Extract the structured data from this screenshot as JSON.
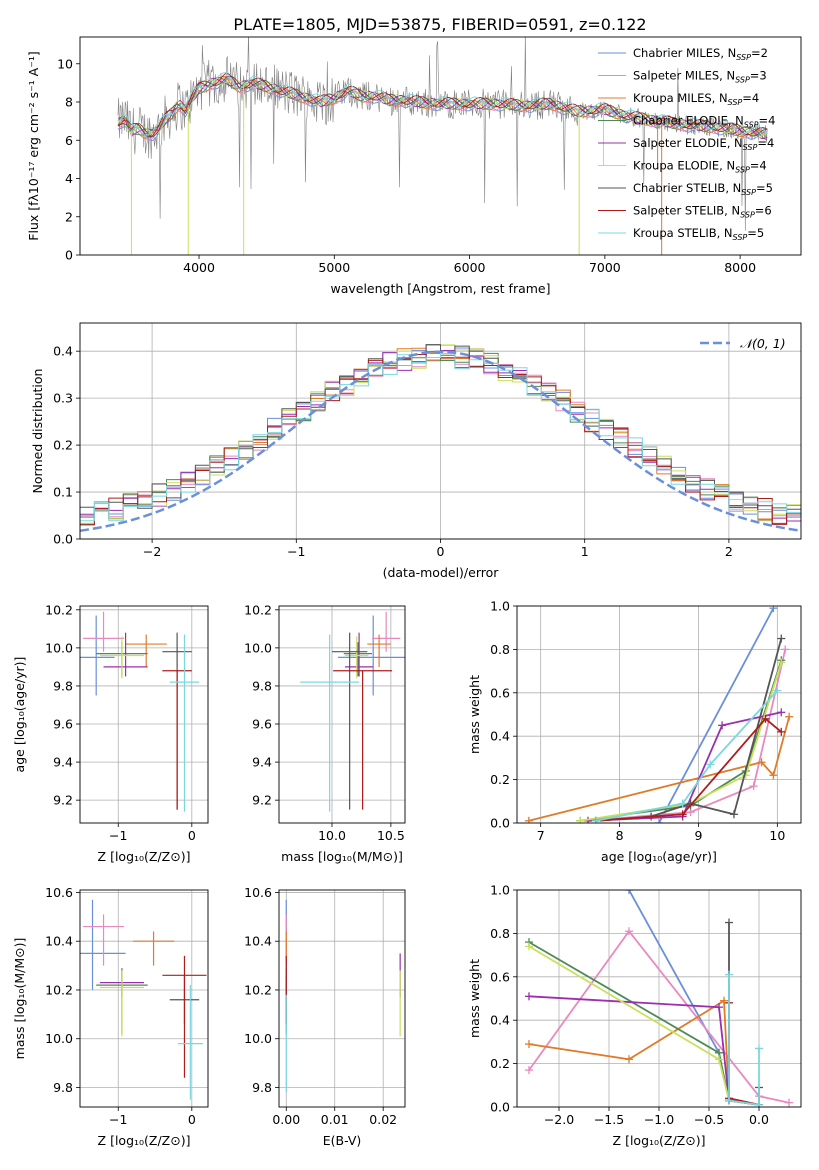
{
  "figure_title": "PLATE=1805, MJD=53875, FIBERID=0591, z=0.122",
  "colors": {
    "Chabrier MILES": "#6a8fdc",
    "Salpeter MILES": "#e889c0",
    "Kroupa MILES": "#e07b28",
    "Chabrier ELODIE": "#4e8a56",
    "Salpeter ELODIE": "#9b2fae",
    "Kroupa ELODIE": "#c8e05c",
    "Chabrier STELIB": "#555555",
    "Salpeter STELIB": "#b01c1c",
    "Kroupa STELIB": "#7ad7e0",
    "data": "#808080",
    "normal": "#6a8fdc"
  },
  "chart_data": [
    {
      "id": "spectrum",
      "type": "line",
      "xlabel": "wavelength [Angstrom, rest frame]",
      "ylabel": "Flux [fλ10⁻¹⁷ erg cm⁻² s⁻¹ A⁻¹]",
      "xlim": [
        3120,
        8450
      ],
      "ylim": [
        0,
        11.4
      ],
      "xticks": [
        4000,
        5000,
        6000,
        7000,
        8000
      ],
      "yticks": [
        0,
        2,
        4,
        6,
        8,
        10
      ],
      "legend_position": "top-right",
      "legend": [
        {
          "model": "Chabrier MILES",
          "label": "Chabrier MILES, N",
          "sub": "SSP",
          "tail": "=2"
        },
        {
          "model": "Salpeter MILES",
          "label": "Salpeter MILES, N",
          "sub": "SSP",
          "tail": "=3"
        },
        {
          "model": "Kroupa MILES",
          "label": "Kroupa MILES, N",
          "sub": "SSP",
          "tail": "=4"
        },
        {
          "model": "Chabrier ELODIE",
          "label": "Chabrier ELODIE, N",
          "sub": "SSP",
          "tail": "=4"
        },
        {
          "model": "Salpeter ELODIE",
          "label": "Salpeter ELODIE, N",
          "sub": "SSP",
          "tail": "=4"
        },
        {
          "model": "Kroupa ELODIE",
          "label": "Kroupa ELODIE, N",
          "sub": "SSP",
          "tail": "=4"
        },
        {
          "model": "Chabrier STELIB",
          "label": "Chabrier STELIB, N",
          "sub": "SSP",
          "tail": "=5"
        },
        {
          "model": "Salpeter STELIB",
          "label": "Salpeter STELIB, N",
          "sub": "SSP",
          "tail": "=6"
        },
        {
          "model": "Kroupa STELIB",
          "label": "Kroupa STELIB, N",
          "sub": "SSP",
          "tail": "=5"
        }
      ],
      "continuum": [
        [
          3400,
          6.9
        ],
        [
          3450,
          7.1
        ],
        [
          3500,
          6.5
        ],
        [
          3550,
          6.6
        ],
        [
          3600,
          6.4
        ],
        [
          3650,
          6.3
        ],
        [
          3700,
          6.6
        ],
        [
          3750,
          7.1
        ],
        [
          3800,
          7.4
        ],
        [
          3850,
          7.9
        ],
        [
          3900,
          7.6
        ],
        [
          3950,
          8.2
        ],
        [
          4000,
          8.7
        ],
        [
          4100,
          9.0
        ],
        [
          4200,
          9.2
        ],
        [
          4300,
          8.8
        ],
        [
          4400,
          9.0
        ],
        [
          4500,
          8.8
        ],
        [
          4600,
          8.6
        ],
        [
          4700,
          8.4
        ],
        [
          4800,
          8.2
        ],
        [
          4900,
          8.0
        ],
        [
          5000,
          8.2
        ],
        [
          5100,
          8.6
        ],
        [
          5200,
          8.3
        ],
        [
          5300,
          8.3
        ],
        [
          5400,
          8.1
        ],
        [
          5500,
          8.1
        ],
        [
          5600,
          8.0
        ],
        [
          5800,
          7.9
        ],
        [
          6000,
          7.9
        ],
        [
          6200,
          7.9
        ],
        [
          6400,
          7.8
        ],
        [
          6600,
          7.9
        ],
        [
          6800,
          7.5
        ],
        [
          7000,
          7.6
        ],
        [
          7200,
          7.2
        ],
        [
          7400,
          7.0
        ],
        [
          7600,
          6.8
        ],
        [
          7800,
          6.7
        ],
        [
          8000,
          6.5
        ],
        [
          8200,
          6.3
        ]
      ],
      "dropouts": [
        [
          3500,
          0
        ],
        [
          3920,
          0
        ],
        [
          4330,
          0
        ],
        [
          7420,
          0
        ],
        [
          6810,
          0
        ],
        [
          6990,
          4.7
        ],
        [
          7390,
          4.7
        ]
      ]
    },
    {
      "id": "residuals",
      "type": "histogram",
      "xlabel": "(data-model)/error",
      "ylabel": "Normed distribution",
      "xlim": [
        -2.5,
        2.5
      ],
      "ylim": [
        0,
        0.46
      ],
      "xticks": [
        -2,
        -1,
        0,
        1,
        2
      ],
      "yticks": [
        0.0,
        0.1,
        0.2,
        0.3,
        0.4
      ],
      "bin_width": 0.1,
      "legend_label": "𝒩(0, 1)",
      "legend_position": "top-right"
    },
    {
      "id": "age-vs-Z",
      "type": "scatter",
      "xlabel": "Z [log₁₀(Z/Z⊙)]",
      "ylabel": "age  [log₁₀(age/yr)]",
      "xlim": [
        -1.52,
        0.22
      ],
      "ylim": [
        9.08,
        10.22
      ],
      "xticks": [
        -1,
        0
      ],
      "yticks": [
        9.2,
        9.4,
        9.6,
        9.8,
        10.0,
        10.2
      ],
      "points": [
        {
          "model": "Chabrier MILES",
          "x": -1.3,
          "xerr": 0.25,
          "y": 9.95,
          "yerr": [
            0.2,
            0.22
          ]
        },
        {
          "model": "Salpeter MILES",
          "x": -1.2,
          "xerr": 0.28,
          "y": 10.05,
          "yerr": [
            0.07,
            0.14
          ]
        },
        {
          "model": "Kroupa MILES",
          "x": -0.62,
          "xerr": 0.28,
          "y": 10.02,
          "yerr": [
            0.12,
            0.05
          ]
        },
        {
          "model": "Chabrier ELODIE",
          "x": -0.95,
          "xerr": 0.35,
          "y": 9.97,
          "yerr": [
            0.12,
            0.06
          ]
        },
        {
          "model": "Salpeter ELODIE",
          "x": -0.9,
          "xerr": 0.3,
          "y": 9.9,
          "yerr": [
            0.05,
            0.18
          ]
        },
        {
          "model": "Kroupa ELODIE",
          "x": -0.95,
          "xerr": 0.3,
          "y": 9.96,
          "yerr": [
            0.12,
            0.1
          ]
        },
        {
          "model": "Chabrier STELIB",
          "x": -0.2,
          "xerr": 0.2,
          "y": 9.98,
          "yerr": [
            0.83,
            0.1
          ]
        },
        {
          "model": "Salpeter STELIB",
          "x": -0.2,
          "xerr": 0.2,
          "y": 9.88,
          "yerr": [
            0.73,
            0.0
          ]
        },
        {
          "model": "Kroupa STELIB",
          "x": -0.1,
          "xerr": 0.2,
          "y": 9.82,
          "yerr": [
            0.68,
            0.25
          ]
        }
      ]
    },
    {
      "id": "age-vs-mass",
      "type": "scatter",
      "xlabel": "mass [log₁₀(M/M⊙)]",
      "ylabel": "",
      "xlim": [
        9.55,
        10.62
      ],
      "ylim": [
        9.08,
        10.22
      ],
      "xticks": [
        10.0,
        10.5
      ],
      "yticks": [
        9.2,
        9.4,
        9.6,
        9.8,
        10.0,
        10.2
      ],
      "points": [
        {
          "model": "Chabrier MILES",
          "x": 10.35,
          "xerr": 0.3,
          "y": 9.95,
          "yerr": [
            0.2,
            0.22
          ]
        },
        {
          "model": "Salpeter MILES",
          "x": 10.46,
          "xerr": 0.12,
          "y": 10.05,
          "yerr": [
            0.07,
            0.14
          ]
        },
        {
          "model": "Kroupa MILES",
          "x": 10.4,
          "xerr": 0.1,
          "y": 10.02,
          "yerr": [
            0.12,
            0.05
          ]
        },
        {
          "model": "Chabrier ELODIE",
          "x": 10.22,
          "xerr": 0.12,
          "y": 9.97,
          "yerr": [
            0.12,
            0.06
          ]
        },
        {
          "model": "Salpeter ELODIE",
          "x": 10.23,
          "xerr": 0.12,
          "y": 9.9,
          "yerr": [
            0.05,
            0.18
          ]
        },
        {
          "model": "Kroupa ELODIE",
          "x": 10.21,
          "xerr": 0.1,
          "y": 9.96,
          "yerr": [
            0.12,
            0.1
          ]
        },
        {
          "model": "Chabrier STELIB",
          "x": 10.15,
          "xerr": 0.15,
          "y": 9.98,
          "yerr": [
            0.83,
            0.1
          ]
        },
        {
          "model": "Salpeter STELIB",
          "x": 10.26,
          "xerr": 0.25,
          "y": 9.88,
          "yerr": [
            0.73,
            0.0
          ]
        },
        {
          "model": "Kroupa STELIB",
          "x": 9.98,
          "xerr": 0.25,
          "y": 9.82,
          "yerr": [
            0.68,
            0.25
          ]
        }
      ]
    },
    {
      "id": "weight-vs-age",
      "type": "line",
      "xlabel": "age  [log₁₀(age/yr)]",
      "ylabel": "mass weight",
      "xlim": [
        6.7,
        10.3
      ],
      "ylim": [
        0,
        1.0
      ],
      "xticks": [
        7,
        8,
        9,
        10
      ],
      "yticks": [
        0.0,
        0.2,
        0.4,
        0.6,
        0.8,
        1.0
      ],
      "series": [
        {
          "model": "Chabrier MILES",
          "x": [
            8.5,
            9.95
          ],
          "y": [
            0.0,
            0.99
          ]
        },
        {
          "model": "Salpeter MILES",
          "x": [
            7.6,
            8.9,
            9.7,
            10.1
          ],
          "y": [
            0.01,
            0.05,
            0.17,
            0.8
          ]
        },
        {
          "model": "Kroupa MILES",
          "x": [
            6.85,
            9.8,
            9.95,
            10.15
          ],
          "y": [
            0.01,
            0.28,
            0.22,
            0.49
          ]
        },
        {
          "model": "Chabrier ELODIE",
          "x": [
            7.5,
            8.9,
            9.6,
            10.05
          ],
          "y": [
            0.01,
            0.08,
            0.24,
            0.75
          ]
        },
        {
          "model": "Salpeter ELODIE",
          "x": [
            7.6,
            8.8,
            9.3,
            10.05
          ],
          "y": [
            0.01,
            0.03,
            0.45,
            0.51
          ]
        },
        {
          "model": "Kroupa ELODIE",
          "x": [
            7.5,
            8.9,
            9.6,
            10.05
          ],
          "y": [
            0.01,
            0.09,
            0.22,
            0.74
          ]
        },
        {
          "model": "Chabrier STELIB",
          "x": [
            7.7,
            8.4,
            8.9,
            9.45,
            10.05
          ],
          "y": [
            0.01,
            0.03,
            0.09,
            0.04,
            0.85
          ]
        },
        {
          "model": "Salpeter STELIB",
          "x": [
            7.7,
            8.8,
            9.85,
            10.05
          ],
          "y": [
            0.01,
            0.04,
            0.48,
            0.42
          ]
        },
        {
          "model": "Kroupa STELIB",
          "x": [
            7.7,
            8.8,
            9.15,
            10.0
          ],
          "y": [
            0.01,
            0.09,
            0.27,
            0.61
          ]
        }
      ]
    },
    {
      "id": "mass-vs-Z",
      "type": "scatter",
      "xlabel": "Z [log₁₀(Z/Z⊙)]",
      "ylabel": "mass [log₁₀(M/M⊙)]",
      "xlim": [
        -1.52,
        0.22
      ],
      "ylim": [
        9.72,
        10.61
      ],
      "xticks": [
        -1,
        0
      ],
      "yticks": [
        9.8,
        10.0,
        10.2,
        10.4,
        10.6
      ],
      "points": [
        {
          "model": "Chabrier MILES",
          "x": -1.35,
          "xerr": 0.45,
          "y": 10.35,
          "yerr": [
            0.15,
            0.22
          ]
        },
        {
          "model": "Salpeter MILES",
          "x": -1.2,
          "xerr": 0.28,
          "y": 10.46,
          "yerr": [
            0.16,
            0.05
          ]
        },
        {
          "model": "Kroupa MILES",
          "x": -0.52,
          "xerr": 0.28,
          "y": 10.4,
          "yerr": [
            0.1,
            0.04
          ]
        },
        {
          "model": "Chabrier ELODIE",
          "x": -0.95,
          "xerr": 0.35,
          "y": 10.22,
          "yerr": [
            0.2,
            0.07
          ]
        },
        {
          "model": "Salpeter ELODIE",
          "x": -0.95,
          "xerr": 0.3,
          "y": 10.23,
          "yerr": [
            0.06,
            0.05
          ]
        },
        {
          "model": "Kroupa ELODIE",
          "x": -0.95,
          "xerr": 0.3,
          "y": 10.21,
          "yerr": [
            0.2,
            0.07
          ]
        },
        {
          "model": "Chabrier STELIB",
          "x": -0.1,
          "xerr": 0.2,
          "y": 10.16,
          "yerr": [
            0.1,
            0.1
          ]
        },
        {
          "model": "Salpeter STELIB",
          "x": -0.1,
          "xerr": 0.3,
          "y": 10.26,
          "yerr": [
            0.42,
            0.08
          ]
        },
        {
          "model": "Kroupa STELIB",
          "x": -0.02,
          "xerr": 0.17,
          "y": 9.98,
          "yerr": [
            0.23,
            0.24
          ]
        }
      ]
    },
    {
      "id": "mass-vs-EBV",
      "type": "scatter",
      "xlabel": "E(B-V)",
      "ylabel": "",
      "xlim": [
        -0.0015,
        0.0245
      ],
      "ylim": [
        9.72,
        10.61
      ],
      "xticks": [
        0.0,
        0.01,
        0.02
      ],
      "xtick_labels": [
        "0.00",
        "0.01",
        "0.02"
      ],
      "yticks": [
        9.8,
        10.0,
        10.2,
        10.4,
        10.6
      ],
      "points": [
        {
          "model": "Chabrier MILES",
          "x": 0.0,
          "y": 10.35,
          "yerr": [
            0.15,
            0.22
          ]
        },
        {
          "model": "Salpeter MILES",
          "x": 0.0,
          "y": 10.46,
          "yerr": [
            0.16,
            0.05
          ]
        },
        {
          "model": "Kroupa MILES",
          "x": 0.0,
          "y": 10.4,
          "yerr": [
            0.1,
            0.04
          ]
        },
        {
          "model": "Chabrier ELODIE",
          "x": 0.0,
          "y": 10.22,
          "yerr": [
            0.2,
            0.07
          ]
        },
        {
          "model": "Salpeter ELODIE",
          "x": 0.0235,
          "y": 10.23,
          "yerr": [
            0.06,
            0.12
          ]
        },
        {
          "model": "Kroupa ELODIE",
          "x": 0.0235,
          "y": 10.21,
          "yerr": [
            0.2,
            0.07
          ]
        },
        {
          "model": "Chabrier STELIB",
          "x": 0.0,
          "y": 10.16,
          "yerr": [
            0.1,
            0.1
          ]
        },
        {
          "model": "Salpeter STELIB",
          "x": 0.0,
          "y": 10.26,
          "yerr": [
            0.2,
            0.08
          ]
        },
        {
          "model": "Kroupa STELIB",
          "x": 0.0,
          "y": 9.98,
          "yerr": [
            0.2,
            0.2
          ]
        }
      ]
    },
    {
      "id": "weight-vs-Z",
      "type": "line",
      "xlabel": "Z [log₁₀(Z/Z⊙)]",
      "ylabel": "mass weight",
      "xlim": [
        -2.42,
        0.42
      ],
      "ylim": [
        0,
        1.0
      ],
      "xticks": [
        -2.0,
        -1.5,
        -1.0,
        -0.5,
        0.0
      ],
      "xtick_labels": [
        "−2.0",
        "−1.5",
        "−1.0",
        "−0.5",
        "0.0"
      ],
      "yticks": [
        0.0,
        0.2,
        0.4,
        0.6,
        0.8,
        1.0
      ],
      "series": [
        {
          "model": "Chabrier MILES",
          "x": [
            -1.3,
            -0.4
          ],
          "y": [
            1.0,
            0.25
          ]
        },
        {
          "model": "Salpeter MILES",
          "x": [
            -2.3,
            -1.3,
            0.0,
            0.3
          ],
          "y": [
            0.17,
            0.81,
            0.05,
            0.02
          ]
        },
        {
          "model": "Kroupa MILES",
          "x": [
            -2.3,
            -1.3,
            -0.35,
            -0.3,
            0.0
          ],
          "y": [
            0.29,
            0.22,
            0.49,
            0.03,
            0.01
          ]
        },
        {
          "model": "Chabrier ELODIE",
          "x": [
            -2.3,
            -0.4,
            -0.3,
            0.0
          ],
          "y": [
            0.76,
            0.25,
            0.03,
            0.01
          ]
        },
        {
          "model": "Salpeter ELODIE",
          "x": [
            -2.3,
            -0.4,
            -0.3,
            0.0
          ],
          "y": [
            0.51,
            0.46,
            0.03,
            0.01
          ]
        },
        {
          "model": "Kroupa ELODIE",
          "x": [
            -2.3,
            -0.4,
            -0.3,
            0.0
          ],
          "y": [
            0.74,
            0.22,
            0.03,
            0.01
          ]
        },
        {
          "model": "Chabrier STELIB",
          "x": [
            -0.3,
            -0.3,
            0.0,
            0.0
          ],
          "y": [
            0.85,
            0.03,
            0.01,
            0.09
          ]
        },
        {
          "model": "Salpeter STELIB",
          "x": [
            -0.3,
            -0.3,
            0.0
          ],
          "y": [
            0.48,
            0.04,
            0.01
          ]
        },
        {
          "model": "Kroupa STELIB",
          "x": [
            -0.3,
            -0.3,
            0.0,
            0.0
          ],
          "y": [
            0.61,
            0.03,
            0.01,
            0.27
          ]
        }
      ]
    }
  ]
}
